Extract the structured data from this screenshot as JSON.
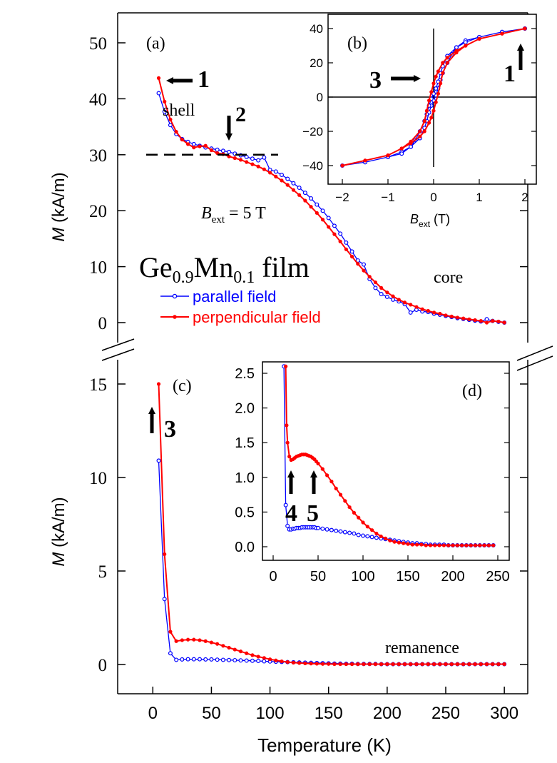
{
  "chart_data": [
    {
      "id": "a",
      "type": "line",
      "panel_label": "(a)",
      "ylabel_italic": "M",
      "ylabel_rest": " (kA/m)",
      "ylim": [
        -3,
        55
      ],
      "yticks": [
        0,
        10,
        20,
        30,
        40,
        50
      ],
      "xlim": [
        -30,
        320
      ],
      "title_main": "Ge",
      "title_sub1": "0.9",
      "title_mid": "Mn",
      "title_sub2": "0.1",
      "title_tail": " film",
      "field_label_main": "B",
      "field_label_sub": "ext",
      "field_label_rest": " = 5 T",
      "annotations": {
        "shell": "shell",
        "core": "core",
        "arrow1": "1",
        "arrow2": "2"
      },
      "dashed_reference": 30,
      "series": [
        {
          "name": "parallel field",
          "color": "#0000ff",
          "marker": "open",
          "x": [
            5,
            10,
            15,
            20,
            25,
            30,
            35,
            40,
            45,
            50,
            55,
            60,
            65,
            70,
            75,
            80,
            85,
            90,
            95,
            100,
            105,
            110,
            115,
            120,
            125,
            130,
            135,
            140,
            145,
            150,
            155,
            160,
            165,
            170,
            175,
            180,
            185,
            190,
            195,
            200,
            205,
            210,
            215,
            220,
            225,
            230,
            235,
            240,
            245,
            250,
            255,
            260,
            265,
            270,
            275,
            280,
            285,
            290,
            295,
            300
          ],
          "y": [
            41,
            37.7,
            35.3,
            33.7,
            32.8,
            32.3,
            31.9,
            31.6,
            31.3,
            31.1,
            30.9,
            30.7,
            30.5,
            30.2,
            29.9,
            29.6,
            29.3,
            29,
            29.5,
            27.3,
            27,
            26.4,
            25.7,
            24.9,
            24.1,
            23.2,
            22.2,
            21.1,
            20,
            18.7,
            17.3,
            15.9,
            14.3,
            12.7,
            11.1,
            10.4,
            7.8,
            6.2,
            5.1,
            4.6,
            4.1,
            3.8,
            3.3,
            1.8,
            2.3,
            2,
            1.9,
            1.6,
            1.4,
            1.2,
            1,
            0.8,
            0.65,
            0.5,
            0.35,
            0.2,
            0.6,
            0.3,
            0.15,
            0
          ]
        },
        {
          "name": "perpendicular field",
          "color": "#ff0000",
          "marker": "filled",
          "x": [
            5,
            10,
            15,
            20,
            25,
            30,
            35,
            40,
            45,
            50,
            55,
            60,
            65,
            70,
            75,
            80,
            85,
            90,
            95,
            100,
            105,
            110,
            115,
            120,
            125,
            130,
            135,
            140,
            145,
            150,
            155,
            160,
            165,
            170,
            175,
            180,
            185,
            190,
            195,
            200,
            205,
            210,
            215,
            220,
            225,
            230,
            235,
            240,
            245,
            250,
            255,
            260,
            265,
            270,
            275,
            280,
            285,
            290,
            295,
            300
          ],
          "y": [
            43.7,
            39.5,
            36.3,
            34.1,
            32.7,
            31.9,
            31.3,
            31.5,
            31.6,
            30.8,
            30.3,
            30.1,
            29.7,
            29.4,
            29.1,
            28.7,
            28.3,
            27.9,
            27.4,
            26.8,
            26.1,
            25.4,
            24.6,
            23.7,
            22.8,
            21.8,
            20.7,
            19.6,
            18.4,
            17.1,
            15.8,
            14.5,
            13.1,
            11.8,
            10.5,
            9.3,
            8.2,
            7.2,
            6.2,
            5.4,
            4.7,
            4.1,
            3.6,
            3.2,
            2.8,
            2.4,
            2.1,
            1.8,
            1.6,
            1.3,
            1.1,
            0.9,
            0.75,
            0.6,
            0.45,
            0.3,
            0,
            0.3,
            0.2,
            0
          ]
        }
      ]
    },
    {
      "id": "b",
      "type": "line",
      "panel_label": "(b)",
      "xlabel_main": "B",
      "xlabel_sub": "ext",
      "xlabel_rest": " (T)",
      "xlim": [
        -2.3,
        2.3
      ],
      "ylim": [
        -42,
        45
      ],
      "xticks": [
        -2,
        -1,
        0,
        1,
        2
      ],
      "yticks": [
        -40,
        -20,
        0,
        20,
        40
      ],
      "xtick_labels": [
        "−2",
        "−1",
        "0",
        "1",
        "2"
      ],
      "ytick_labels": [
        "−40",
        "−20",
        "0",
        "20",
        "40"
      ],
      "annotations": {
        "arrow3": "3",
        "arrow1": "1"
      },
      "series": [
        {
          "name": "parallel field",
          "color": "#0000ff",
          "marker": "open",
          "x": [
            2,
            1.5,
            1,
            0.7,
            0.5,
            0.4,
            0.3,
            0.2,
            0.15,
            0.1,
            0.05,
            0,
            -0.05,
            -0.1,
            -0.15,
            -0.2,
            -0.3,
            -0.5,
            -0.7,
            -1,
            -1.5,
            -2,
            -1.5,
            -1,
            -0.7,
            -0.5,
            -0.4,
            -0.3,
            -0.2,
            -0.15,
            -0.1,
            -0.05,
            0,
            0.05,
            0.1,
            0.15,
            0.2,
            0.3,
            0.5,
            0.7,
            1,
            1.5,
            2
          ],
          "y": [
            40,
            38,
            35,
            33,
            29,
            25,
            20,
            14,
            10,
            5,
            1,
            -2,
            -5,
            -9,
            -14,
            -18,
            -24,
            -29,
            -32,
            -35,
            -38,
            -40,
            -38,
            -35,
            -33,
            -29,
            -25,
            -20,
            -14,
            -10,
            -5,
            -1,
            2,
            5,
            9,
            14,
            18,
            24,
            29,
            32,
            35,
            38,
            40
          ]
        },
        {
          "name": "perpendicular field",
          "color": "#ff0000",
          "marker": "filled",
          "x": [
            2,
            1.5,
            1,
            0.7,
            0.5,
            0.3,
            0.2,
            0.1,
            0.05,
            0,
            -0.05,
            -0.1,
            -0.15,
            -0.2,
            -0.3,
            -0.5,
            -0.7,
            -1,
            -1.5,
            -2,
            -1.5,
            -1,
            -0.7,
            -0.5,
            -0.3,
            -0.2,
            -0.1,
            -0.05,
            0,
            0.05,
            0.1,
            0.15,
            0.2,
            0.3,
            0.5,
            0.7,
            1,
            1.5,
            2
          ],
          "y": [
            40,
            37,
            34,
            30,
            27,
            23,
            20,
            15,
            12,
            8,
            3,
            -2,
            -8,
            -14,
            -20,
            -26,
            -30,
            -34,
            -37,
            -40,
            -37,
            -34,
            -30,
            -27,
            -23,
            -20,
            -15,
            -12,
            -8,
            -3,
            2,
            8,
            14,
            20,
            26,
            30,
            34,
            37,
            40
          ]
        }
      ]
    },
    {
      "id": "c",
      "type": "line",
      "panel_label": "(c)",
      "ylabel_italic": "M",
      "ylabel_rest": " (kA/m)",
      "xlabel": "Temperature (K)",
      "xlim": [
        -30,
        320
      ],
      "ylim": [
        -1.5,
        16
      ],
      "xticks": [
        0,
        50,
        100,
        150,
        200,
        250,
        300
      ],
      "yticks": [
        0,
        5,
        10,
        15
      ],
      "annotations": {
        "remanence": "remanence",
        "arrow3": "3"
      },
      "series": [
        {
          "name": "parallel field",
          "color": "#0000ff",
          "marker": "open",
          "x": [
            5,
            10,
            15,
            20,
            25,
            30,
            35,
            40,
            45,
            50,
            55,
            60,
            65,
            70,
            75,
            80,
            85,
            90,
            95,
            100,
            105,
            110,
            115,
            120,
            125,
            130,
            135,
            140,
            145,
            150,
            155,
            160,
            165,
            170,
            175,
            180,
            185,
            190,
            195,
            200,
            205,
            210,
            215,
            220,
            225,
            230,
            235,
            240,
            245,
            250,
            255,
            260,
            265,
            270,
            275,
            280,
            285,
            290,
            295,
            300
          ],
          "y": [
            10.9,
            3.5,
            0.6,
            0.25,
            0.27,
            0.28,
            0.28,
            0.28,
            0.27,
            0.27,
            0.26,
            0.25,
            0.24,
            0.23,
            0.22,
            0.21,
            0.2,
            0.19,
            0.17,
            0.16,
            0.15,
            0.14,
            0.13,
            0.12,
            0.11,
            0.1,
            0.09,
            0.08,
            0.07,
            0.06,
            0.05,
            0.05,
            0.04,
            0.04,
            0.03,
            0.03,
            0.03,
            0.03,
            0.02,
            0.02,
            0.02,
            0.02,
            0.02,
            0.02,
            0.02,
            0.02,
            0.02,
            0.02,
            0.02,
            0.02,
            0.02,
            0.02,
            0.02,
            0.02,
            0.02,
            0.02,
            0.02,
            0.02,
            0.02,
            0.02
          ]
        },
        {
          "name": "perpendicular field",
          "color": "#ff0000",
          "marker": "filled",
          "x": [
            5,
            10,
            15,
            20,
            25,
            30,
            35,
            40,
            45,
            50,
            55,
            60,
            65,
            70,
            75,
            80,
            85,
            90,
            95,
            100,
            105,
            110,
            115,
            120,
            125,
            130,
            135,
            140,
            145,
            150,
            155,
            160,
            165,
            170,
            175,
            180,
            185,
            190,
            195,
            200,
            205,
            210,
            215,
            220,
            225,
            230,
            235,
            240,
            245,
            250,
            255,
            260,
            265,
            270,
            275,
            280,
            285,
            290,
            295,
            300
          ],
          "y": [
            15,
            5.9,
            1.75,
            1.25,
            1.3,
            1.33,
            1.33,
            1.3,
            1.25,
            1.18,
            1.1,
            1,
            0.9,
            0.8,
            0.7,
            0.6,
            0.5,
            0.42,
            0.35,
            0.28,
            0.22,
            0.17,
            0.13,
            0.1,
            0.08,
            0.06,
            0.05,
            0.04,
            0.03,
            0.03,
            0.02,
            0.02,
            0.02,
            0.02,
            0.02,
            0.02,
            0.02,
            0.02,
            0.02,
            0.02,
            0.02,
            0.02,
            0.02,
            0.02,
            0.02,
            0.02,
            0.02,
            0.02,
            0.02,
            0.02,
            0.02,
            0.02,
            0.02,
            0.02,
            0.02,
            0.02,
            0.02,
            0.02,
            0.02,
            0.02
          ]
        }
      ]
    },
    {
      "id": "d",
      "type": "line",
      "panel_label": "(d)",
      "xlim": [
        -15,
        265
      ],
      "ylim": [
        -0.1,
        2.6
      ],
      "xticks": [
        0,
        50,
        100,
        150,
        200,
        250
      ],
      "yticks": [
        0,
        0.5,
        1,
        1.5,
        2,
        2.5
      ],
      "xtick_labels": [
        "0",
        "50",
        "100",
        "150",
        "200",
        "250"
      ],
      "ytick_labels": [
        "0.0",
        "0.5",
        "1.0",
        "1.5",
        "2.0",
        "2.5"
      ],
      "annotations": {
        "arrow4": "4",
        "arrow5": "5"
      },
      "series": [
        {
          "name": "parallel field",
          "color": "#0000ff",
          "marker": "open",
          "x": [
            12,
            14,
            16,
            18,
            20,
            22,
            24,
            26,
            28,
            30,
            32,
            34,
            36,
            38,
            40,
            42,
            44,
            46,
            48,
            50,
            55,
            60,
            65,
            70,
            75,
            80,
            85,
            90,
            95,
            100,
            105,
            110,
            115,
            120,
            125,
            130,
            135,
            140,
            145,
            150,
            155,
            160,
            165,
            170,
            175,
            180,
            185,
            190,
            195,
            200,
            205,
            210,
            215,
            220,
            225,
            230,
            235,
            240,
            245
          ],
          "y": [
            2.6,
            0.6,
            0.3,
            0.25,
            0.25,
            0.26,
            0.26,
            0.27,
            0.27,
            0.27,
            0.28,
            0.28,
            0.28,
            0.28,
            0.28,
            0.28,
            0.28,
            0.28,
            0.27,
            0.27,
            0.26,
            0.25,
            0.24,
            0.23,
            0.22,
            0.21,
            0.2,
            0.19,
            0.17,
            0.16,
            0.15,
            0.14,
            0.13,
            0.12,
            0.11,
            0.1,
            0.09,
            0.08,
            0.07,
            0.06,
            0.05,
            0.05,
            0.04,
            0.04,
            0.03,
            0.03,
            0.03,
            0.03,
            0.02,
            0.02,
            0.02,
            0.02,
            0.02,
            0.02,
            0.02,
            0.02,
            0.02,
            0.02,
            0.02
          ]
        },
        {
          "name": "perpendicular field",
          "color": "#ff0000",
          "marker": "filled",
          "x": [
            14,
            15,
            16,
            18,
            20,
            22,
            24,
            26,
            28,
            30,
            32,
            34,
            36,
            38,
            40,
            42,
            44,
            46,
            48,
            50,
            55,
            60,
            65,
            70,
            75,
            80,
            85,
            90,
            95,
            100,
            105,
            110,
            115,
            120,
            125,
            130,
            135,
            140,
            145,
            150,
            155,
            160,
            165,
            170,
            175,
            180,
            185,
            190,
            195,
            200,
            205,
            210,
            215,
            220,
            225,
            230,
            235,
            240,
            245
          ],
          "y": [
            2.6,
            1.75,
            1.5,
            1.3,
            1.25,
            1.26,
            1.28,
            1.3,
            1.31,
            1.32,
            1.33,
            1.33,
            1.33,
            1.32,
            1.31,
            1.3,
            1.28,
            1.26,
            1.23,
            1.2,
            1.12,
            1.03,
            0.94,
            0.84,
            0.75,
            0.66,
            0.57,
            0.49,
            0.42,
            0.35,
            0.29,
            0.24,
            0.19,
            0.15,
            0.12,
            0.09,
            0.07,
            0.06,
            0.05,
            0.04,
            0.03,
            0.03,
            0.03,
            0.02,
            0.02,
            0.02,
            0.02,
            0.02,
            0.02,
            0.02,
            0.02,
            0.02,
            0.02,
            0.02,
            0.02,
            0.02,
            0.02,
            0.02,
            0.02
          ]
        }
      ]
    }
  ]
}
